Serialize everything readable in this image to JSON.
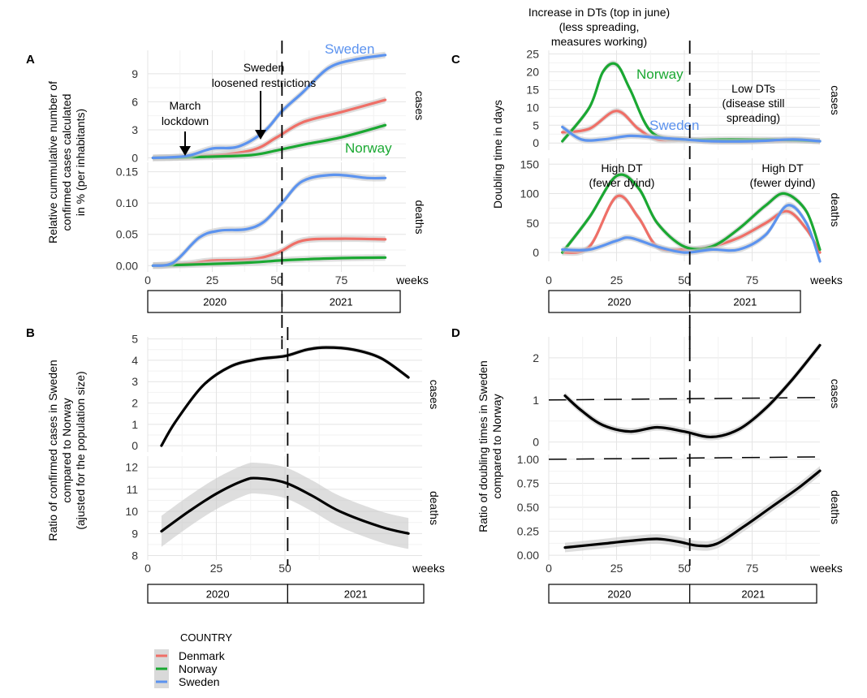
{
  "legend": {
    "title": "COUNTRY",
    "items": [
      {
        "name": "Denmark",
        "color": "#ef6f67"
      },
      {
        "name": "Norway",
        "color": "#1aa832"
      },
      {
        "name": "Sweden",
        "color": "#5c93ef"
      }
    ]
  },
  "chart_data": [
    {
      "panel": "A",
      "type": "line",
      "ylabel": "Relative cummulative number of confirmed cases calculated in % (per inhabitants)",
      "ylabel_lines": [
        "Relative cummulative number of",
        "confirmed cases calculated",
        "in % (per inhabitants)"
      ],
      "xlabel": "weeks",
      "x_ticks": [
        0,
        25,
        50,
        75
      ],
      "xlim": [
        0,
        100
      ],
      "years": [
        "2020",
        "2021"
      ],
      "vline_x": 52,
      "annotations": [
        "March lockdown",
        "Sweden loosened restrictions"
      ],
      "facets": [
        {
          "strip": "cases",
          "ylim": [
            -0.3,
            11.5
          ],
          "y_ticks": [
            "0",
            "3",
            "6",
            "9"
          ],
          "y_tick_values": [
            0,
            3,
            6,
            9
          ],
          "series": [
            {
              "name": "Denmark",
              "x": [
                2,
                20,
                40,
                50,
                60,
                75,
                92
              ],
              "y": [
                0,
                0.15,
                0.8,
                2.2,
                3.8,
                4.9,
                6.2
              ]
            },
            {
              "name": "Norway",
              "x": [
                2,
                20,
                40,
                50,
                60,
                75,
                92
              ],
              "y": [
                0,
                0.1,
                0.3,
                0.8,
                1.4,
                2.2,
                3.5
              ]
            },
            {
              "name": "Sweden",
              "x": [
                2,
                15,
                25,
                35,
                45,
                52,
                60,
                70,
                80,
                92
              ],
              "y": [
                0,
                0.2,
                1.0,
                1.2,
                2.8,
                5.0,
                7.0,
                9.6,
                10.5,
                11.0
              ]
            }
          ],
          "series_labels": [
            "Sweden",
            "Norway"
          ]
        },
        {
          "strip": "deaths",
          "ylim": [
            -0.01,
            0.165
          ],
          "y_ticks": [
            "0.00",
            "0.05",
            "0.10",
            "0.15"
          ],
          "y_tick_values": [
            0,
            0.05,
            0.1,
            0.15
          ],
          "series": [
            {
              "name": "Denmark",
              "x": [
                2,
                15,
                25,
                40,
                50,
                60,
                75,
                92
              ],
              "y": [
                0,
                0.003,
                0.008,
                0.01,
                0.02,
                0.04,
                0.043,
                0.042
              ]
            },
            {
              "name": "Norway",
              "x": [
                2,
                20,
                40,
                50,
                60,
                75,
                92
              ],
              "y": [
                0,
                0.002,
                0.005,
                0.008,
                0.01,
                0.012,
                0.013
              ]
            },
            {
              "name": "Sweden",
              "x": [
                2,
                10,
                20,
                28,
                38,
                45,
                52,
                60,
                72,
                85,
                92
              ],
              "y": [
                0,
                0.005,
                0.045,
                0.056,
                0.058,
                0.07,
                0.1,
                0.135,
                0.145,
                0.14,
                0.14
              ]
            }
          ]
        }
      ]
    },
    {
      "panel": "B",
      "type": "line",
      "ylabel": "Ratio of confirmed cases in Sweden compared to Norway (ajusted for the population size)",
      "ylabel_lines": [
        "Ratio of confirmed cases in Sweden",
        "compared to Norway",
        "(ajusted for the population size)"
      ],
      "xlabel": "weeks",
      "x_ticks": [
        0,
        25,
        50
      ],
      "xlim": [
        0,
        100
      ],
      "years": [
        "2020",
        "2021"
      ],
      "vline_x": 51,
      "facets": [
        {
          "strip": "cases",
          "ylim": [
            -0.3,
            5.1
          ],
          "y_ticks": [
            "0",
            "1",
            "2",
            "3",
            "4",
            "5"
          ],
          "y_tick_values": [
            0,
            1,
            2,
            3,
            4,
            5
          ],
          "series": [
            {
              "name": "Sweden/Norway",
              "x": [
                5,
                10,
                20,
                30,
                40,
                50,
                58,
                65,
                75,
                85,
                95
              ],
              "y": [
                0,
                1.1,
                2.8,
                3.7,
                4.05,
                4.2,
                4.5,
                4.6,
                4.5,
                4.1,
                3.2
              ],
              "band": 0.1
            }
          ]
        },
        {
          "strip": "deaths",
          "ylim": [
            7.8,
            12.5
          ],
          "y_ticks": [
            "8",
            "9",
            "10",
            "11",
            "12"
          ],
          "y_tick_values": [
            8,
            9,
            10,
            11,
            12
          ],
          "series": [
            {
              "name": "Sweden/Norway",
              "x": [
                5,
                15,
                25,
                35,
                40,
                50,
                60,
                70,
                85,
                95
              ],
              "y": [
                9.1,
                10.0,
                10.8,
                11.4,
                11.5,
                11.3,
                10.7,
                10.0,
                9.3,
                9.0
              ],
              "band": 0.7
            }
          ]
        }
      ]
    },
    {
      "panel": "C",
      "type": "line",
      "ylabel": "Doubling time in days",
      "xlabel": "weeks",
      "x_ticks": [
        0,
        25,
        50,
        75
      ],
      "xlim": [
        0,
        100
      ],
      "years": [
        "2020",
        "2021"
      ],
      "vline_x": 52,
      "annotations": [
        "Increase in DTs (top in june) (less spreading, measures working)",
        "Low DTs (disease still spreading)",
        "High DT (fewer dyind)",
        "High DT (fewer dyind)"
      ],
      "annotation_lines": [
        [
          "Increase in DTs (top in june)",
          "(less spreading,",
          "measures working)"
        ],
        [
          "Low DTs",
          "(disease still",
          "spreading)"
        ],
        [
          "High DT",
          "(fewer dyind)"
        ],
        [
          "High DT",
          "(fewer dyind)"
        ]
      ],
      "facets": [
        {
          "strip": "cases",
          "ylim": [
            -2,
            26
          ],
          "y_ticks": [
            "0",
            "5",
            "10",
            "15",
            "20",
            "25"
          ],
          "y_tick_values": [
            0,
            5,
            10,
            15,
            20,
            25
          ],
          "series": [
            {
              "name": "Denmark",
              "x": [
                5,
                15,
                25,
                33,
                40,
                50,
                60,
                75,
                90,
                100
              ],
              "y": [
                3,
                4,
                9,
                4,
                1,
                1,
                0.5,
                0.5,
                0.8,
                0.5
              ]
            },
            {
              "name": "Norway",
              "x": [
                5,
                15,
                20,
                25,
                30,
                38,
                50,
                60,
                75,
                90,
                100
              ],
              "y": [
                0.5,
                10,
                20,
                22,
                15,
                3,
                1,
                1,
                1,
                0.8,
                0.5
              ]
            },
            {
              "name": "Sweden",
              "x": [
                5,
                12,
                20,
                30,
                40,
                50,
                60,
                75,
                90,
                100
              ],
              "y": [
                4.5,
                1,
                1,
                2,
                1.5,
                1,
                0.5,
                0.5,
                1,
                0.5
              ]
            }
          ],
          "series_labels": [
            "Norway",
            "Sweden"
          ]
        },
        {
          "strip": "deaths",
          "ylim": [
            -15,
            160
          ],
          "y_ticks": [
            "0",
            "50",
            "100",
            "150"
          ],
          "y_tick_values": [
            0,
            50,
            100,
            150
          ],
          "series": [
            {
              "name": "Denmark",
              "x": [
                5,
                15,
                25,
                33,
                40,
                50,
                60,
                70,
                80,
                88,
                95,
                100
              ],
              "y": [
                0,
                10,
                95,
                60,
                10,
                5,
                10,
                25,
                50,
                70,
                40,
                0
              ]
            },
            {
              "name": "Norway",
              "x": [
                5,
                15,
                25,
                33,
                40,
                50,
                60,
                70,
                80,
                87,
                95,
                100
              ],
              "y": [
                0,
                60,
                130,
                110,
                50,
                10,
                10,
                40,
                80,
                100,
                70,
                5
              ]
            },
            {
              "name": "Sweden",
              "x": [
                5,
                15,
                25,
                30,
                40,
                50,
                60,
                70,
                80,
                88,
                95,
                100
              ],
              "y": [
                5,
                5,
                20,
                25,
                10,
                0,
                5,
                5,
                30,
                80,
                50,
                -15
              ]
            }
          ]
        }
      ]
    },
    {
      "panel": "D",
      "type": "line",
      "ylabel": "Ratio of doubling times in Sweden compared to Norway",
      "ylabel_lines": [
        "Ratio of doubling times in Sweden",
        "compared to Norway"
      ],
      "xlabel": "weeks",
      "x_ticks": [
        0,
        25,
        50,
        75
      ],
      "xlim": [
        0,
        100
      ],
      "years": [
        "2020",
        "2021"
      ],
      "vline_x": 52,
      "facets": [
        {
          "strip": "cases",
          "ylim": [
            -0.2,
            2.5
          ],
          "y_ticks": [
            "0",
            "1",
            "2"
          ],
          "y_tick_values": [
            0,
            1,
            2
          ],
          "hline_y": 1,
          "series": [
            {
              "name": "Sweden/Norway",
              "x": [
                6,
                12,
                20,
                30,
                40,
                50,
                60,
                70,
                80,
                90,
                100
              ],
              "y": [
                1.1,
                0.75,
                0.4,
                0.25,
                0.35,
                0.25,
                0.12,
                0.3,
                0.8,
                1.5,
                2.3
              ],
              "band": 0.08
            }
          ]
        },
        {
          "strip": "deaths",
          "ylim": [
            -0.05,
            1.05
          ],
          "y_ticks": [
            "0.00",
            "0.25",
            "0.50",
            "0.75",
            "1.00"
          ],
          "y_tick_values": [
            0,
            0.25,
            0.5,
            0.75,
            1
          ],
          "hline_y": 1,
          "series": [
            {
              "name": "Sweden/Norway",
              "x": [
                6,
                20,
                30,
                40,
                48,
                55,
                62,
                72,
                82,
                92,
                100
              ],
              "y": [
                0.08,
                0.12,
                0.15,
                0.17,
                0.14,
                0.1,
                0.12,
                0.3,
                0.5,
                0.7,
                0.88
              ],
              "band": 0.05
            }
          ]
        }
      ]
    }
  ]
}
